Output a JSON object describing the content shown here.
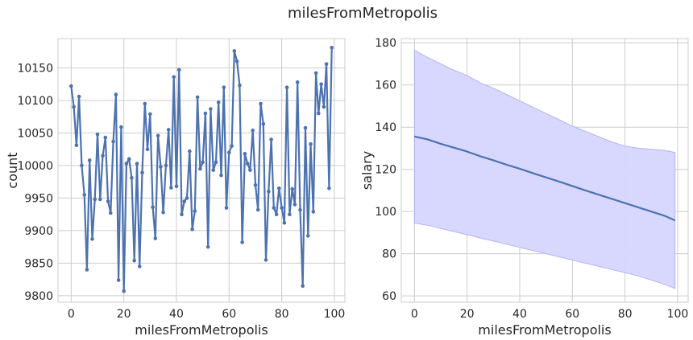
{
  "title": "milesFromMetropolis",
  "colors": {
    "line": "#4c72b0",
    "band_fill": "#d6d6ff",
    "band_edge": "#b3b3f7",
    "grid": "#cccccc"
  },
  "chart_data": [
    {
      "type": "line",
      "xlabel": "milesFromMetropolis",
      "ylabel": "count",
      "xlim": [
        -5,
        104
      ],
      "ylim": [
        9790,
        10195
      ],
      "xticks": [
        0,
        20,
        40,
        60,
        80,
        100
      ],
      "yticks": [
        9800,
        9850,
        9900,
        9950,
        10000,
        10050,
        10100,
        10150
      ],
      "grid": true,
      "markers": true,
      "x": [
        0,
        1,
        2,
        3,
        4,
        5,
        6,
        7,
        8,
        9,
        10,
        11,
        12,
        13,
        14,
        15,
        16,
        17,
        18,
        19,
        20,
        21,
        22,
        23,
        24,
        25,
        26,
        27,
        28,
        29,
        30,
        31,
        32,
        33,
        34,
        35,
        36,
        37,
        38,
        39,
        40,
        41,
        42,
        43,
        44,
        45,
        46,
        47,
        48,
        49,
        50,
        51,
        52,
        53,
        54,
        55,
        56,
        57,
        58,
        59,
        60,
        61,
        62,
        63,
        64,
        65,
        66,
        67,
        68,
        69,
        70,
        71,
        72,
        73,
        74,
        75,
        76,
        77,
        78,
        79,
        80,
        81,
        82,
        83,
        84,
        85,
        86,
        87,
        88,
        89,
        90,
        91,
        92,
        93,
        94,
        95,
        96,
        97,
        98,
        99
      ],
      "y": [
        10122,
        10090,
        10031,
        10106,
        10000,
        9955,
        9840,
        10008,
        9887,
        9948,
        10048,
        9948,
        10015,
        10043,
        9945,
        9927,
        10037,
        10109,
        9824,
        10059,
        9807,
        10003,
        10010,
        9981,
        9854,
        10003,
        9845,
        9989,
        10095,
        10025,
        10079,
        9936,
        9888,
        10046,
        9998,
        9928,
        10000,
        10055,
        9966,
        10136,
        9968,
        10147,
        9925,
        9945,
        9950,
        10022,
        9902,
        9930,
        10105,
        9995,
        10005,
        10080,
        9875,
        10087,
        9993,
        10005,
        10097,
        9985,
        10120,
        9935,
        10020,
        10030,
        10176,
        10160,
        10123,
        9882,
        10018,
        10003,
        9993,
        10054,
        9970,
        9932,
        10095,
        10064,
        9855,
        9960,
        10040,
        9935,
        9925,
        9965,
        9935,
        9912,
        10120,
        9925,
        9964,
        9940,
        10128,
        9932,
        9815,
        10058,
        9892,
        10033,
        9929,
        10142,
        10080,
        10125,
        10090,
        10156,
        9965,
        10181
      ]
    },
    {
      "type": "area",
      "xlabel": "milesFromMetropolis",
      "ylabel": "salary",
      "xlim": [
        -5,
        104
      ],
      "ylim": [
        57,
        182
      ],
      "xticks": [
        0,
        20,
        40,
        60,
        80,
        100
      ],
      "yticks": [
        60,
        80,
        100,
        120,
        140,
        160,
        180
      ],
      "grid": true,
      "line": [
        {
          "x": 0,
          "y": 135.6
        },
        {
          "x": 5,
          "y": 134.2
        },
        {
          "x": 10,
          "y": 132.1
        },
        {
          "x": 15,
          "y": 130.3
        },
        {
          "x": 20,
          "y": 128.4
        },
        {
          "x": 25,
          "y": 126.2
        },
        {
          "x": 30,
          "y": 124.3
        },
        {
          "x": 35,
          "y": 122.2
        },
        {
          "x": 40,
          "y": 120.3
        },
        {
          "x": 45,
          "y": 118.2
        },
        {
          "x": 50,
          "y": 116.2
        },
        {
          "x": 55,
          "y": 114.2
        },
        {
          "x": 60,
          "y": 112.1
        },
        {
          "x": 65,
          "y": 110.0
        },
        {
          "x": 70,
          "y": 108.0
        },
        {
          "x": 75,
          "y": 106.0
        },
        {
          "x": 80,
          "y": 104.0
        },
        {
          "x": 85,
          "y": 102.0
        },
        {
          "x": 90,
          "y": 100.0
        },
        {
          "x": 95,
          "y": 98.0
        },
        {
          "x": 99,
          "y": 95.8
        }
      ],
      "upper": [
        {
          "x": 0,
          "y": 176.5
        },
        {
          "x": 5,
          "y": 173.0
        },
        {
          "x": 10,
          "y": 170.0
        },
        {
          "x": 15,
          "y": 167.0
        },
        {
          "x": 20,
          "y": 164.5
        },
        {
          "x": 25,
          "y": 161.0
        },
        {
          "x": 30,
          "y": 158.5
        },
        {
          "x": 35,
          "y": 155.5
        },
        {
          "x": 40,
          "y": 152.5
        },
        {
          "x": 45,
          "y": 149.5
        },
        {
          "x": 50,
          "y": 146.5
        },
        {
          "x": 55,
          "y": 143.5
        },
        {
          "x": 60,
          "y": 140.5
        },
        {
          "x": 65,
          "y": 138.0
        },
        {
          "x": 70,
          "y": 135.5
        },
        {
          "x": 75,
          "y": 133.0
        },
        {
          "x": 80,
          "y": 131.0
        },
        {
          "x": 85,
          "y": 130.0
        },
        {
          "x": 90,
          "y": 129.5
        },
        {
          "x": 95,
          "y": 129.0
        },
        {
          "x": 99,
          "y": 128.0
        }
      ],
      "lower": [
        {
          "x": 0,
          "y": 94.5
        },
        {
          "x": 5,
          "y": 93.5
        },
        {
          "x": 10,
          "y": 92.0
        },
        {
          "x": 15,
          "y": 90.5
        },
        {
          "x": 20,
          "y": 89.0
        },
        {
          "x": 25,
          "y": 87.5
        },
        {
          "x": 30,
          "y": 86.0
        },
        {
          "x": 35,
          "y": 84.5
        },
        {
          "x": 40,
          "y": 83.0
        },
        {
          "x": 45,
          "y": 81.5
        },
        {
          "x": 50,
          "y": 80.0
        },
        {
          "x": 55,
          "y": 78.5
        },
        {
          "x": 60,
          "y": 77.0
        },
        {
          "x": 65,
          "y": 75.5
        },
        {
          "x": 70,
          "y": 74.0
        },
        {
          "x": 75,
          "y": 72.5
        },
        {
          "x": 80,
          "y": 71.0
        },
        {
          "x": 85,
          "y": 69.5
        },
        {
          "x": 90,
          "y": 67.5
        },
        {
          "x": 95,
          "y": 65.5
        },
        {
          "x": 99,
          "y": 63.5
        }
      ]
    }
  ]
}
